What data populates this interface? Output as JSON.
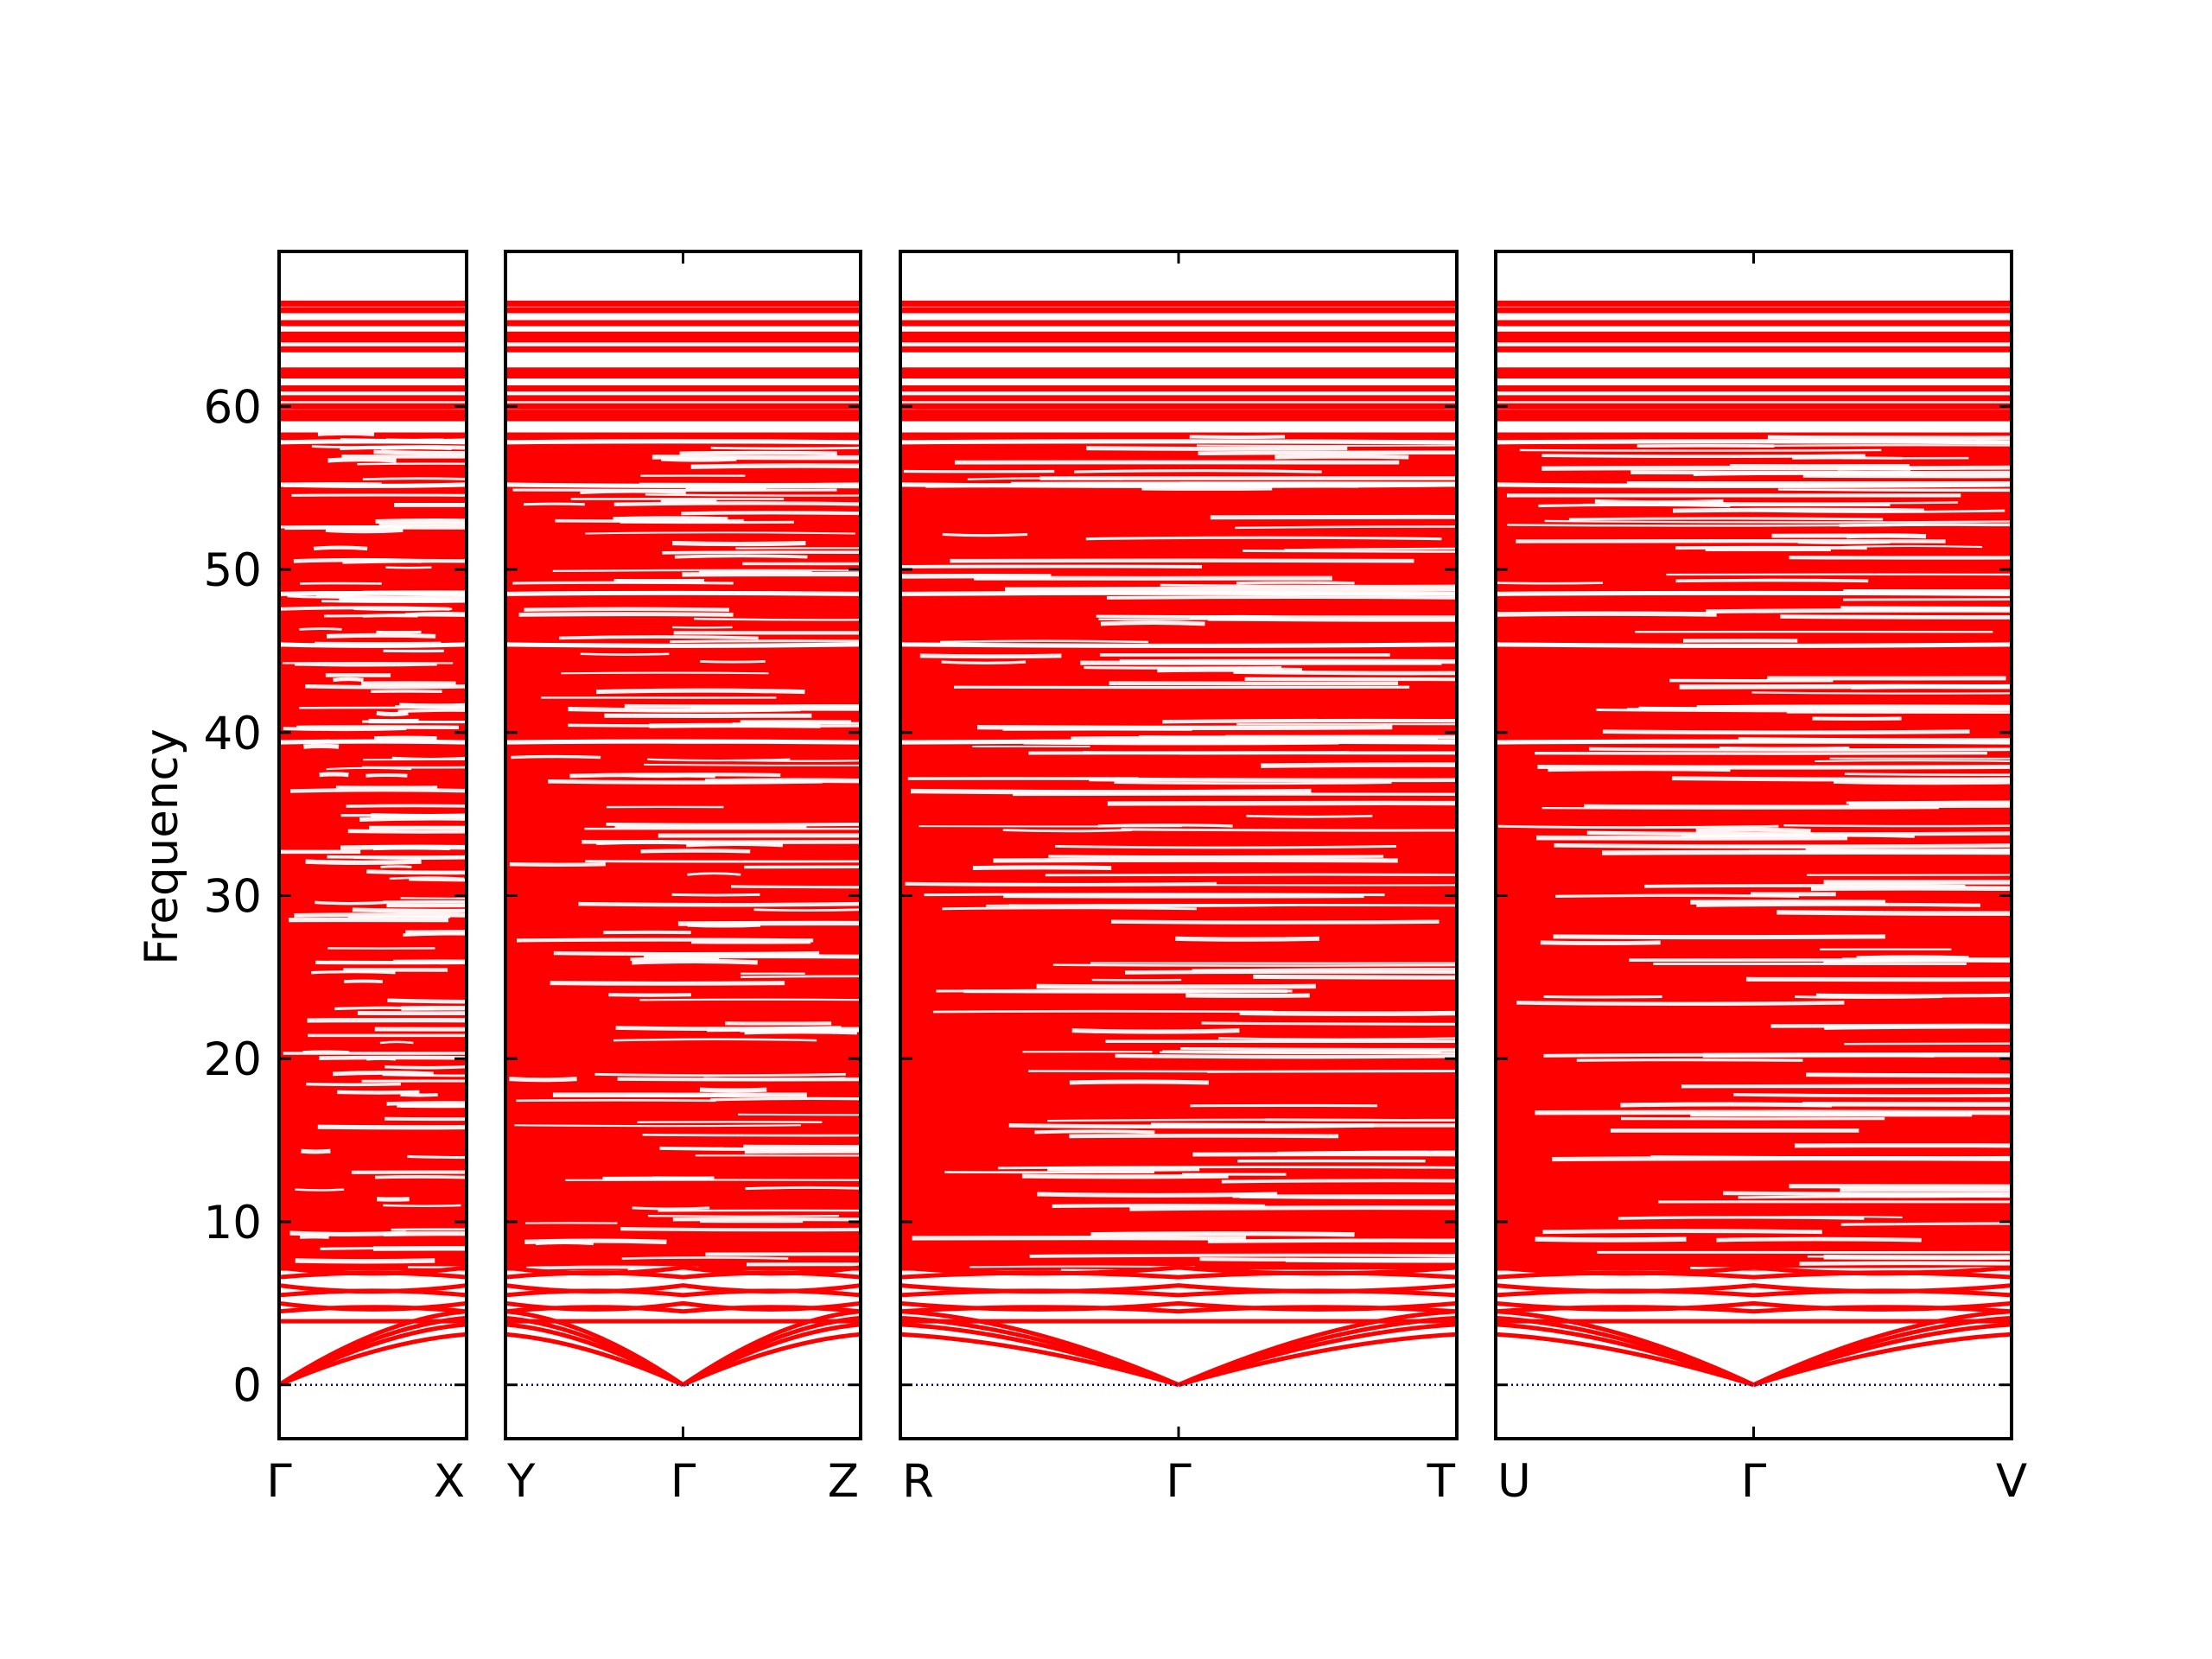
{
  "chart_data": {
    "type": "line",
    "title": "",
    "ylabel": "Frequency",
    "xlabel": "",
    "ylim": [
      -3.3,
      69.5
    ],
    "yticks": [
      0,
      10,
      20,
      30,
      40,
      50,
      60
    ],
    "colors": {
      "bands": "#ff0000",
      "zero_line": "#00008b",
      "frame": "#000000"
    },
    "panels": [
      {
        "labels": [
          "Γ",
          "X"
        ],
        "path": [
          "Γ",
          "X"
        ]
      },
      {
        "labels": [
          "Y",
          "Γ",
          "Z"
        ],
        "path": [
          "Y",
          "Γ",
          "Z"
        ]
      },
      {
        "labels": [
          "R",
          "Γ",
          "T"
        ],
        "path": [
          "R",
          "Γ",
          "T"
        ]
      },
      {
        "labels": [
          "U",
          "Γ",
          "V"
        ],
        "path": [
          "U",
          "Γ",
          "V"
        ]
      }
    ],
    "series": [
      {
        "kind": "high_flat_bands",
        "values": [
          66.3,
          65.9,
          65.1,
          64.4,
          64.1,
          63.5,
          62.2,
          61.9,
          61.1,
          60.5,
          60.0
        ]
      },
      {
        "kind": "dense_band_region",
        "range": [
          7.0,
          58.4
        ]
      },
      {
        "kind": "optical_low",
        "values": [
          4.5,
          5.0,
          5.5,
          6.1,
          6.6,
          7.2
        ]
      },
      {
        "kind": "acoustic",
        "at_gamma": 0.0,
        "at_zone_edge": [
          3.1,
          3.7,
          4.1,
          4.5
        ]
      },
      {
        "kind": "zero_reference",
        "value": 0
      }
    ]
  }
}
